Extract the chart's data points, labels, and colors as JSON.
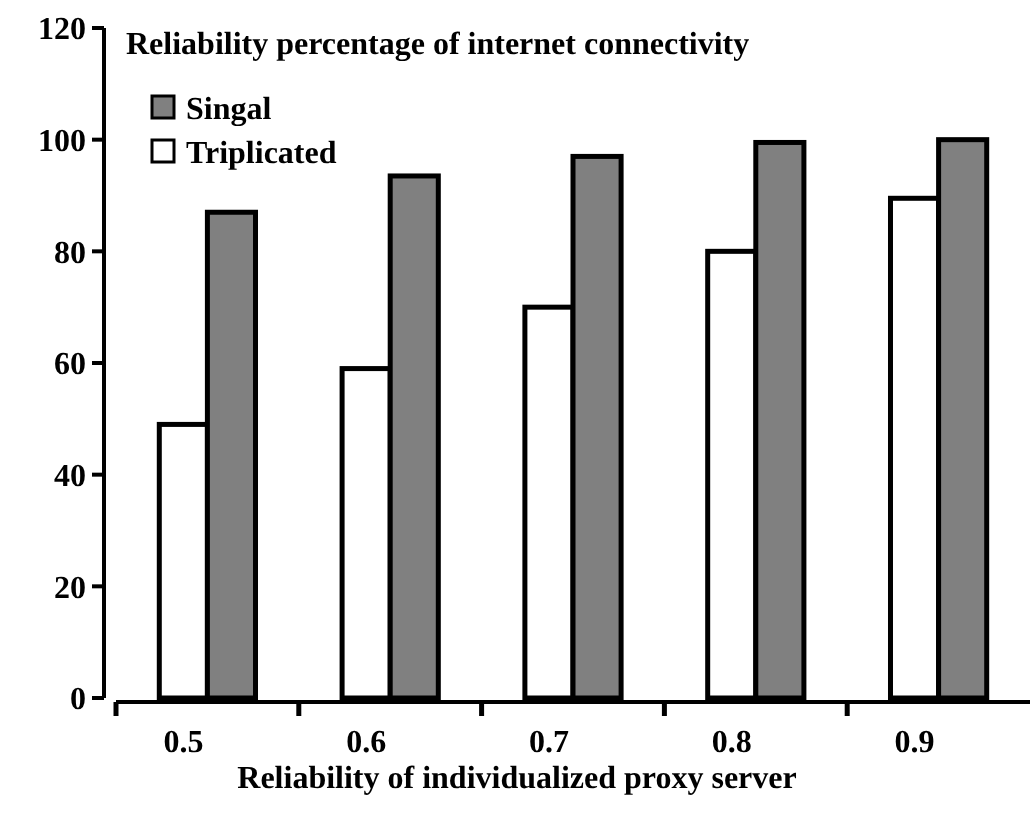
{
  "chart_data": {
    "type": "bar",
    "title": "Reliability percentage of internet connectivity",
    "xlabel": "Reliability of individualized proxy server",
    "categories": [
      "0.5",
      "0.6",
      "0.7",
      "0.8",
      "0.9"
    ],
    "series": [
      {
        "name": "Triplicated",
        "color": "#ffffff",
        "values": [
          49,
          59,
          70,
          80,
          89.5
        ]
      },
      {
        "name": "Singal",
        "color": "#808080",
        "values": [
          87,
          93.5,
          97,
          99.5,
          100
        ]
      }
    ],
    "ylim": [
      0,
      120
    ],
    "yticks": [
      0,
      20,
      40,
      60,
      80,
      100,
      120
    ],
    "grid": false,
    "legend": "top left"
  }
}
